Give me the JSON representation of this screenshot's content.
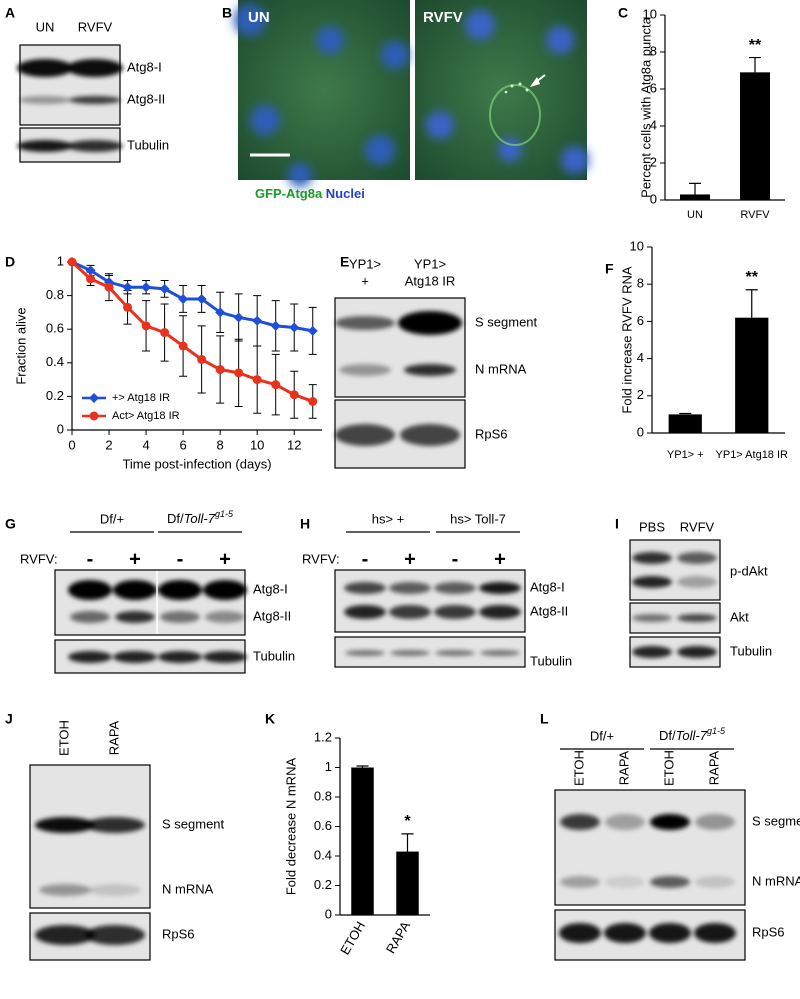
{
  "chart_data": [
    {
      "type": "bar",
      "letter": "C",
      "categories": [
        "UN",
        "RVFV"
      ],
      "values": [
        0.3,
        6.9
      ],
      "errors": [
        0.6,
        0.8
      ],
      "ylabel": "Percent cells with Atg8a puncta",
      "ylim": [
        0,
        10
      ],
      "yticks": [
        0,
        2,
        4,
        6,
        8,
        10
      ],
      "annotations": [
        {
          "text": "**",
          "category": "RVFV"
        }
      ],
      "color": "#000000"
    },
    {
      "type": "line",
      "letter": "D",
      "xlabel": "Time post-infection (days)",
      "ylabel": "Fraction alive",
      "x": [
        0,
        1,
        2,
        3,
        4,
        5,
        6,
        7,
        8,
        9,
        10,
        11,
        12,
        13
      ],
      "xlim": [
        0,
        13.5
      ],
      "xticks": [
        0,
        2,
        4,
        6,
        8,
        10,
        12
      ],
      "ylim": [
        0,
        1
      ],
      "yticks": [
        0,
        0.2,
        0.4,
        0.6,
        0.8,
        1
      ],
      "legend": "lower left",
      "series": [
        {
          "name": "+> Atg18 IR",
          "color": "#1f4fd8",
          "marker": "diamond",
          "values": [
            1,
            0.95,
            0.88,
            0.85,
            0.85,
            0.84,
            0.78,
            0.78,
            0.7,
            0.67,
            0.65,
            0.62,
            0.61,
            0.59
          ],
          "errors": [
            0,
            0.03,
            0.04,
            0.04,
            0.04,
            0.05,
            0.08,
            0.08,
            0.12,
            0.14,
            0.15,
            0.15,
            0.14,
            0.14
          ]
        },
        {
          "name": "Act> Atg18 IR",
          "color": "#e8321e",
          "marker": "circle",
          "values": [
            1,
            0.9,
            0.85,
            0.73,
            0.62,
            0.58,
            0.5,
            0.42,
            0.36,
            0.34,
            0.3,
            0.27,
            0.21,
            0.17
          ],
          "errors": [
            0,
            0.04,
            0.08,
            0.1,
            0.15,
            0.17,
            0.18,
            0.2,
            0.2,
            0.2,
            0.2,
            0.18,
            0.14,
            0.1
          ]
        }
      ]
    },
    {
      "type": "bar",
      "letter": "F",
      "categories": [
        "YP1> +",
        "YP1> Atg18 IR"
      ],
      "values": [
        1,
        6.2
      ],
      "errors": [
        0.05,
        1.5
      ],
      "ylabel": "Fold increase RVFV RNA",
      "ylim": [
        0,
        10
      ],
      "yticks": [
        0,
        2,
        4,
        6,
        8,
        10
      ],
      "annotations": [
        {
          "text": "**",
          "category": "YP1> Atg18 IR"
        }
      ],
      "color": "#000000"
    },
    {
      "type": "bar",
      "letter": "K",
      "categories": [
        "ETOH",
        "RAPA"
      ],
      "values": [
        1,
        0.43
      ],
      "errors": [
        0.01,
        0.12
      ],
      "ylabel": "Fold decrease N mRNA",
      "ylim": [
        0,
        1.2
      ],
      "yticks": [
        0,
        0.2,
        0.4,
        0.6,
        0.8,
        1,
        1.2
      ],
      "annotations": [
        {
          "text": "*",
          "category": "RAPA"
        }
      ],
      "rotate_labels": true,
      "color": "#000000"
    }
  ],
  "panels": {
    "A": {
      "letter": "A",
      "columns": [
        "UN",
        "RVFV"
      ],
      "rows": [
        "Atg8-I",
        "Atg8-II",
        "Tubulin"
      ]
    },
    "B": {
      "letter": "B",
      "images": [
        "UN",
        "RVFV"
      ],
      "stain": "GFP-Atg8a",
      "counterstain": "Nuclei"
    },
    "E": {
      "letter": "E",
      "columns": [
        [
          "YP1>",
          "+"
        ],
        [
          "YP1>",
          "Atg18 IR"
        ]
      ],
      "rows": [
        "S segment",
        "N mRNA",
        "RpS6"
      ]
    },
    "G": {
      "letter": "G",
      "groups": [
        "Df/+",
        {
          "prefix": "Df/",
          "gene": "Toll-7",
          "allele": "g1-5"
        }
      ],
      "treatment": "RVFV:",
      "signs": [
        "-",
        "+",
        "-",
        "+"
      ],
      "rows": [
        "Atg8-I",
        "Atg8-II",
        "Tubulin"
      ]
    },
    "H": {
      "letter": "H",
      "groups": [
        "hs> +",
        "hs> Toll-7"
      ],
      "treatment": "RVFV:",
      "signs": [
        "-",
        "+",
        "-",
        "+"
      ],
      "rows": [
        "Atg8-I",
        "Atg8-II",
        "Tubulin"
      ]
    },
    "I": {
      "letter": "I",
      "columns": [
        "PBS",
        "RVFV"
      ],
      "rows": [
        "p-dAkt",
        "Akt",
        "Tubulin"
      ]
    },
    "J": {
      "letter": "J",
      "columns": [
        "ETOH",
        "RAPA"
      ],
      "rows": [
        "S segment",
        "N mRNA",
        "RpS6"
      ]
    },
    "L": {
      "letter": "L",
      "groups": [
        "Df/+",
        {
          "prefix": "Df/",
          "gene": "Toll-7",
          "allele": "g1-5"
        }
      ],
      "columns": [
        "ETOH",
        "RAPA",
        "ETOH",
        "RAPA"
      ],
      "rows": [
        "S segment",
        "N mRNA",
        "RpS6"
      ]
    }
  }
}
